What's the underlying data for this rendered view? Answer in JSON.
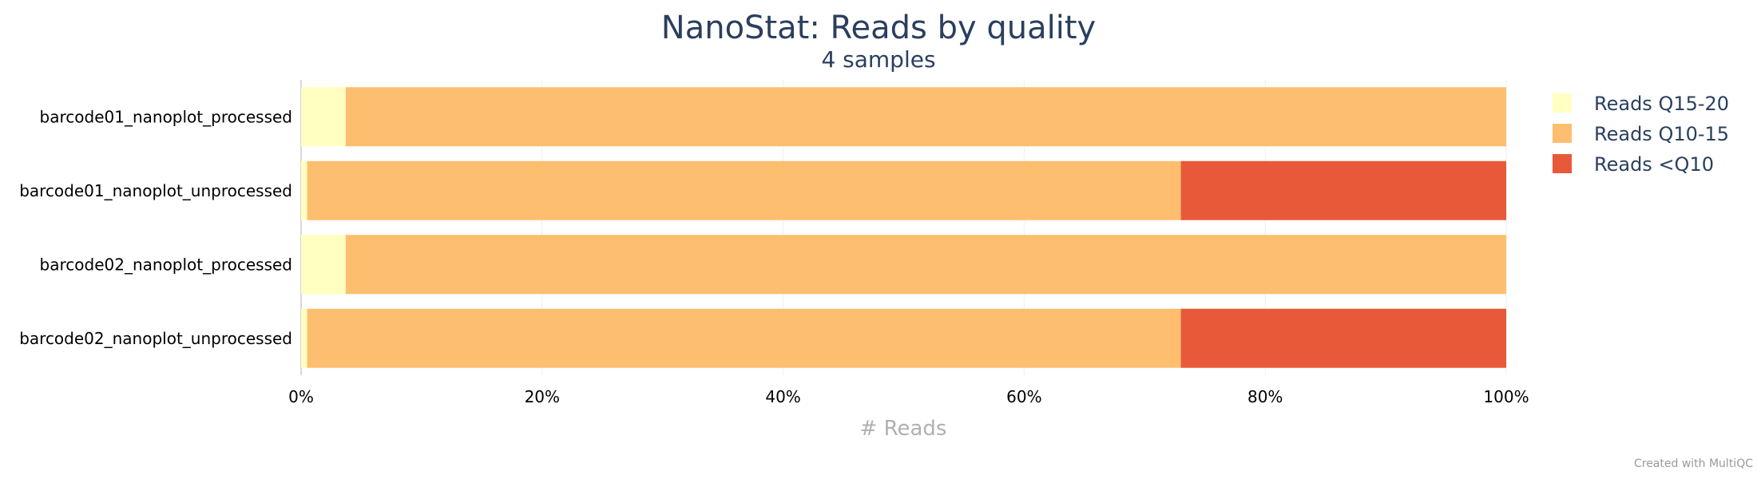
{
  "chart_data": {
    "type": "bar",
    "orientation": "horizontal",
    "stacked": true,
    "title": "NanoStat: Reads by quality",
    "subtitle": "4 samples",
    "xlabel": "# Reads",
    "ylabel": "",
    "xlim": [
      0,
      100
    ],
    "x_ticks": [
      "0%",
      "20%",
      "40%",
      "60%",
      "80%",
      "100%"
    ],
    "grid": true,
    "legend_position": "right",
    "categories": [
      "barcode01_nanoplot_processed",
      "barcode01_nanoplot_unprocessed",
      "barcode02_nanoplot_processed",
      "barcode02_nanoplot_unprocessed"
    ],
    "series": [
      {
        "name": "Reads Q15-20",
        "color": "#ffffc1",
        "values": [
          3.7,
          0.5,
          3.7,
          0.5
        ]
      },
      {
        "name": "Reads Q10-15",
        "color": "#fdbf6f",
        "values": [
          96.3,
          72.5,
          96.3,
          72.5
        ]
      },
      {
        "name": "Reads <Q10",
        "color": "#e8593a",
        "values": [
          0,
          27.0,
          0,
          27.0
        ]
      }
    ]
  },
  "footer": {
    "credit": "Created with MultiQC"
  }
}
